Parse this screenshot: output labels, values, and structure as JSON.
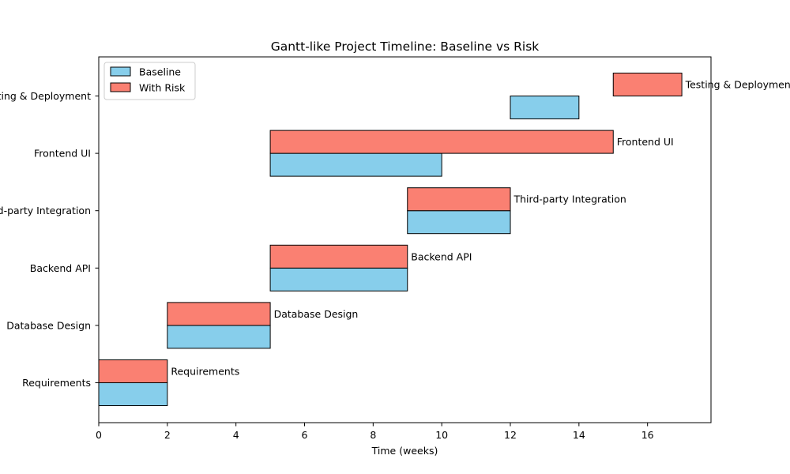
{
  "chart_data": {
    "type": "bar",
    "orientation": "horizontal",
    "title": "Gantt-like Project Timeline: Baseline vs Risk",
    "xlabel": "Time (weeks)",
    "ylabel": "",
    "xlim": [
      0,
      17.85
    ],
    "xticks": [
      0,
      2,
      4,
      6,
      8,
      10,
      12,
      14,
      16
    ],
    "grid": false,
    "legend_position": "top-left",
    "categories": [
      "Requirements",
      "Database Design",
      "Backend API",
      "Third-party Integration",
      "Frontend UI",
      "Testing & Deployment"
    ],
    "series": [
      {
        "name": "Baseline",
        "color": "#87ceeb",
        "tasks": [
          {
            "start": 0,
            "end": 2
          },
          {
            "start": 2,
            "end": 5
          },
          {
            "start": 5,
            "end": 9
          },
          {
            "start": 9,
            "end": 12
          },
          {
            "start": 5,
            "end": 10
          },
          {
            "start": 12,
            "end": 14
          }
        ]
      },
      {
        "name": "With Risk",
        "color": "#fa8072",
        "tasks": [
          {
            "start": 0,
            "end": 2
          },
          {
            "start": 2,
            "end": 5
          },
          {
            "start": 5,
            "end": 9
          },
          {
            "start": 9,
            "end": 12
          },
          {
            "start": 5,
            "end": 15
          },
          {
            "start": 15,
            "end": 17
          }
        ]
      }
    ],
    "annotations": [
      "Requirements",
      "Database Design",
      "Backend API",
      "Third-party Integration",
      "Frontend UI",
      "Testing & Deployment"
    ]
  }
}
